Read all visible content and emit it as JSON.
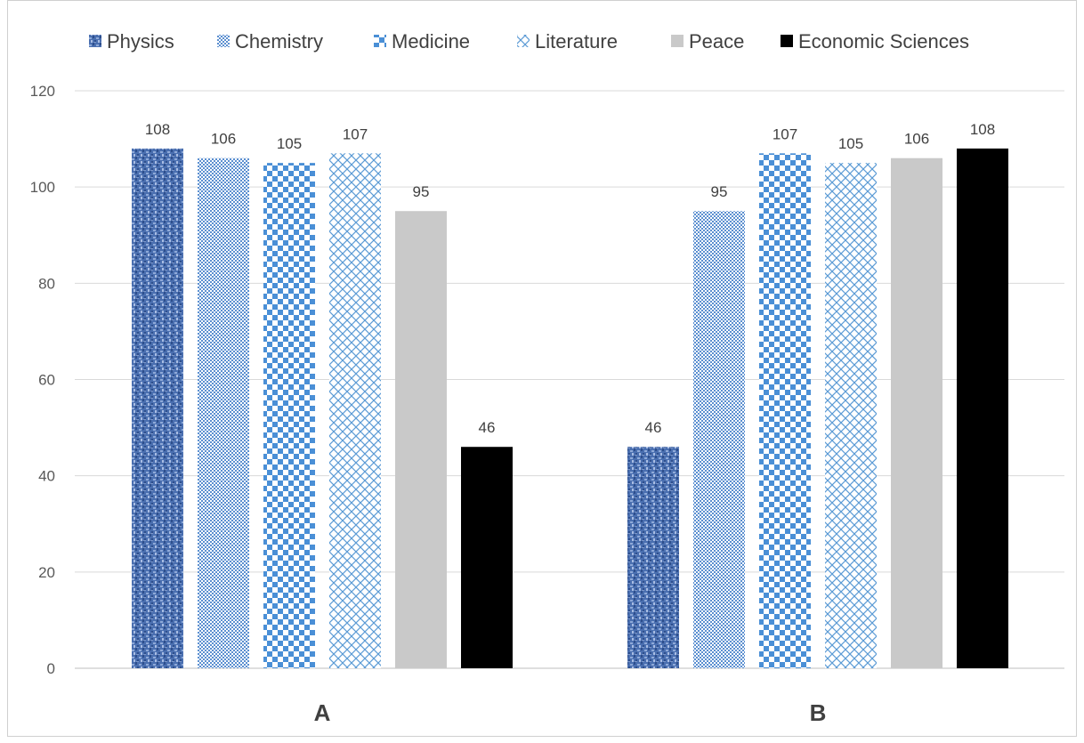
{
  "chart_data": {
    "type": "bar",
    "title": "",
    "xlabel": "",
    "ylabel": "",
    "categories": [
      "A",
      "B"
    ],
    "ylim": [
      0,
      120
    ],
    "yticks": [
      0,
      20,
      40,
      60,
      80,
      100,
      120
    ],
    "grid": true,
    "legend_position": "top",
    "series": [
      {
        "name": "Physics",
        "values": [
          108,
          46
        ],
        "color": "#4a6fb0",
        "pattern": "texture"
      },
      {
        "name": "Chemistry",
        "values": [
          106,
          95
        ],
        "color": "#5b8fd0",
        "pattern": "fine-dots"
      },
      {
        "name": "Medicine",
        "values": [
          105,
          107
        ],
        "color": "#4a8fd6",
        "pattern": "checker"
      },
      {
        "name": "Literature",
        "values": [
          107,
          105
        ],
        "color": "#5b9bd5",
        "pattern": "diamond-lattice"
      },
      {
        "name": "Peace",
        "values": [
          95,
          106
        ],
        "color": "#c9c9c9",
        "pattern": "solid"
      },
      {
        "name": "Economic Sciences",
        "values": [
          46,
          108
        ],
        "color": "#000000",
        "pattern": "solid"
      }
    ]
  }
}
